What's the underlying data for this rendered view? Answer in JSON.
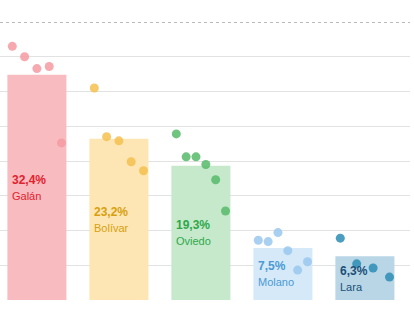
{
  "chart_data": {
    "type": "bar",
    "categories": [
      "Galán",
      "Bolívar",
      "Oviedo",
      "Molano",
      "Lara"
    ],
    "values": [
      32.4,
      23.2,
      19.3,
      7.5,
      6.3
    ],
    "value_labels": [
      "32,4%",
      "23,2%",
      "19,3%",
      "7,5%",
      "6,3%"
    ],
    "colors": [
      "#f8bcc0",
      "#fde6b3",
      "#c6e9cc",
      "#d5e9f8",
      "#b9d6e7"
    ],
    "points": [
      [
        36.5,
        35.0,
        33.3,
        33.6,
        22.6
      ],
      [
        30.5,
        23.5,
        22.9,
        19.9,
        18.6
      ],
      [
        23.9,
        20.6,
        20.6,
        19.5,
        17.3,
        12.8
      ],
      [
        8.6,
        8.4,
        9.7,
        7.1,
        4.3,
        5.5
      ],
      [
        8.9,
        5.2,
        4.6,
        3.3
      ]
    ],
    "ylim": [
      0,
      40
    ],
    "yticks": [
      0,
      5,
      10,
      15,
      20,
      25,
      30,
      35,
      40
    ],
    "grid": true,
    "data_labels": true,
    "tick_labels": false
  }
}
